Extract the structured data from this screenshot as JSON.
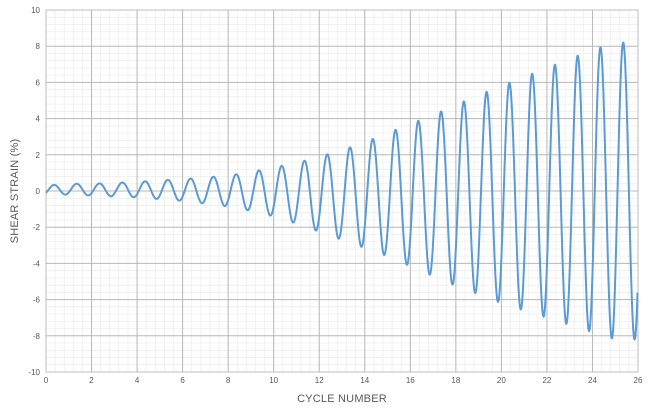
{
  "chart_data": {
    "type": "line",
    "title": "",
    "xlabel": "CYCLE NUMBER",
    "ylabel": "SHEAR STRAIN (%)",
    "xlim": [
      0,
      26
    ],
    "ylim": [
      -10,
      10
    ],
    "x_ticks": [
      "0",
      "2",
      "4",
      "6",
      "8",
      "10",
      "12",
      "14",
      "16",
      "18",
      "20",
      "22",
      "24",
      "26"
    ],
    "y_ticks": [
      "10",
      "8",
      "6",
      "4",
      "2",
      "0",
      "-2",
      "-4",
      "-6",
      "-8",
      "-10"
    ],
    "grid": true,
    "legend": "none",
    "line_color": "#5b9bd5",
    "series": [
      {
        "cycles": [
          0,
          1,
          2,
          3,
          4,
          5,
          6,
          7,
          8,
          9,
          10,
          11,
          12,
          13,
          14,
          15,
          16,
          17,
          18,
          19,
          20,
          21,
          22,
          23,
          24,
          25
        ],
        "peak_max": [
          0.3,
          0.4,
          0.4,
          0.45,
          0.5,
          0.6,
          0.65,
          0.75,
          0.85,
          1.05,
          1.3,
          1.55,
          1.9,
          2.25,
          2.7,
          3.2,
          3.7,
          4.2,
          4.75,
          5.3,
          5.8,
          6.3,
          6.8,
          7.3,
          7.8,
          8.2
        ],
        "peak_min": [
          -0.2,
          -0.2,
          -0.25,
          -0.3,
          -0.35,
          -0.45,
          -0.55,
          -0.7,
          -0.85,
          -1.1,
          -1.4,
          -1.8,
          -2.25,
          -2.7,
          -3.15,
          -3.6,
          -4.15,
          -4.7,
          -5.25,
          -5.7,
          -6.2,
          -6.6,
          -7.0,
          -7.4,
          -7.8,
          -8.2
        ]
      }
    ]
  }
}
